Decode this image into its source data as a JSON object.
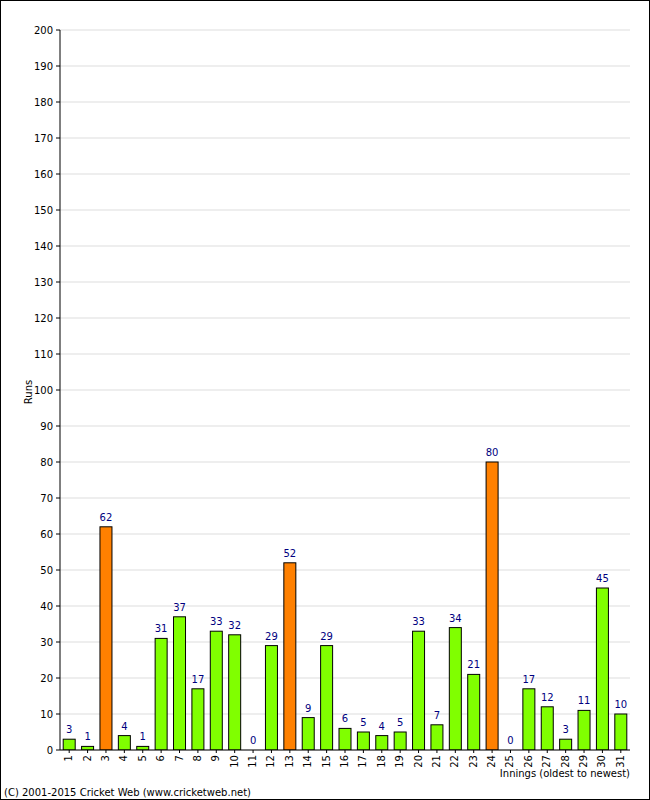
{
  "chart_data": {
    "type": "bar",
    "y_label": "Runs",
    "x_label": "Innings (oldest to newest)",
    "annotations": [
      "(C) 2001-2015 Cricket Web (www.cricketweb.net)"
    ],
    "categories": [
      "1",
      "2",
      "3",
      "4",
      "5",
      "6",
      "7",
      "8",
      "9",
      "10",
      "11",
      "12",
      "13",
      "14",
      "15",
      "16",
      "17",
      "18",
      "19",
      "20",
      "21",
      "22",
      "23",
      "24",
      "25",
      "26",
      "27",
      "28",
      "29",
      "30",
      "31"
    ],
    "values": [
      3,
      1,
      62,
      4,
      1,
      31,
      37,
      17,
      33,
      32,
      0,
      29,
      52,
      9,
      29,
      6,
      5,
      4,
      5,
      33,
      7,
      34,
      21,
      80,
      0,
      17,
      12,
      3,
      11,
      45,
      10
    ],
    "colors": [
      "#80ff00",
      "#80ff00",
      "#ff8000",
      "#80ff00",
      "#80ff00",
      "#80ff00",
      "#80ff00",
      "#80ff00",
      "#80ff00",
      "#80ff00",
      "#80ff00",
      "#80ff00",
      "#ff8000",
      "#80ff00",
      "#80ff00",
      "#80ff00",
      "#80ff00",
      "#80ff00",
      "#80ff00",
      "#80ff00",
      "#80ff00",
      "#80ff00",
      "#80ff00",
      "#ff8000",
      "#80ff00",
      "#80ff00",
      "#80ff00",
      "#80ff00",
      "#80ff00",
      "#80ff00",
      "#80ff00"
    ],
    "ylim": [
      0,
      200
    ],
    "yticks": [
      0,
      10,
      20,
      30,
      40,
      50,
      60,
      70,
      80,
      90,
      100,
      110,
      120,
      130,
      140,
      150,
      160,
      170,
      180,
      190,
      200
    ],
    "grid": true,
    "data_labels": true
  }
}
